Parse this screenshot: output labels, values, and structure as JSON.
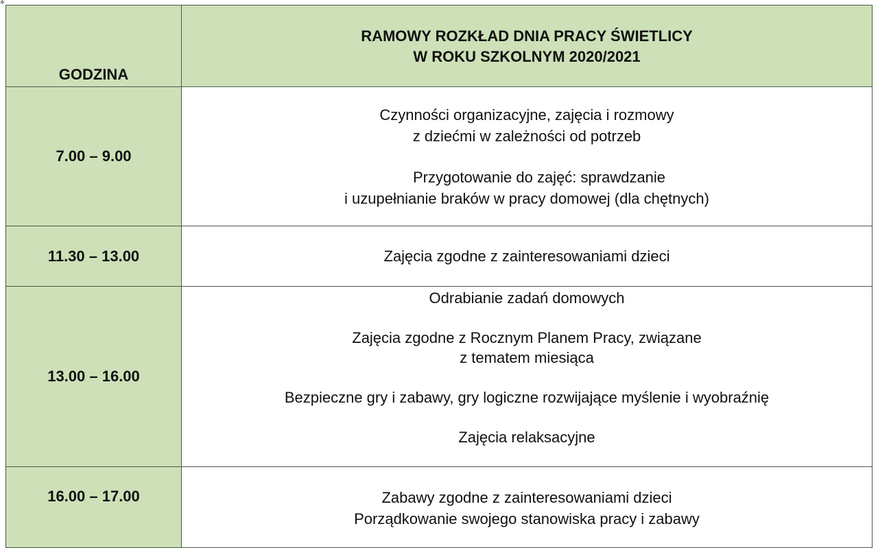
{
  "header": {
    "time_column": "GODZINA",
    "title_line1": "RAMOWY ROZKŁAD DNIA PRACY ŚWIETLICY",
    "title_line2": "W ROKU SZKOLNYM 2020/2021"
  },
  "colors": {
    "header_fill": "#cde0b8",
    "border": "#4a5a44"
  },
  "rows": [
    {
      "time": "7.00 – 9.00",
      "paragraphs": [
        [
          "Czynności organizacyjne, zajęcia i rozmowy",
          "z dziećmi w zależności od potrzeb"
        ],
        [
          "Przygotowanie do zajęć: sprawdzanie",
          "i uzupełnianie braków w pracy domowej (dla chętnych)"
        ]
      ]
    },
    {
      "time": "11.30 – 13.00",
      "paragraphs": [
        [
          "Zajęcia zgodne z zainteresowaniami dzieci"
        ]
      ]
    },
    {
      "time": "13.00 – 16.00",
      "paragraphs": [
        [
          "Odrabianie zadań domowych"
        ],
        [
          "Zajęcia zgodne z Rocznym Planem Pracy, związane",
          "z tematem miesiąca"
        ],
        [
          "Bezpieczne gry i zabawy, gry logiczne rozwijające myślenie i wyobraźnię"
        ],
        [
          "Zajęcia relaksacyjne"
        ]
      ]
    },
    {
      "time": "16.00 – 17.00",
      "paragraphs": [
        [
          "Zabawy zgodne z zainteresowaniami dzieci",
          "Porządkowanie swojego stanowiska pracy i zabawy"
        ]
      ]
    }
  ]
}
